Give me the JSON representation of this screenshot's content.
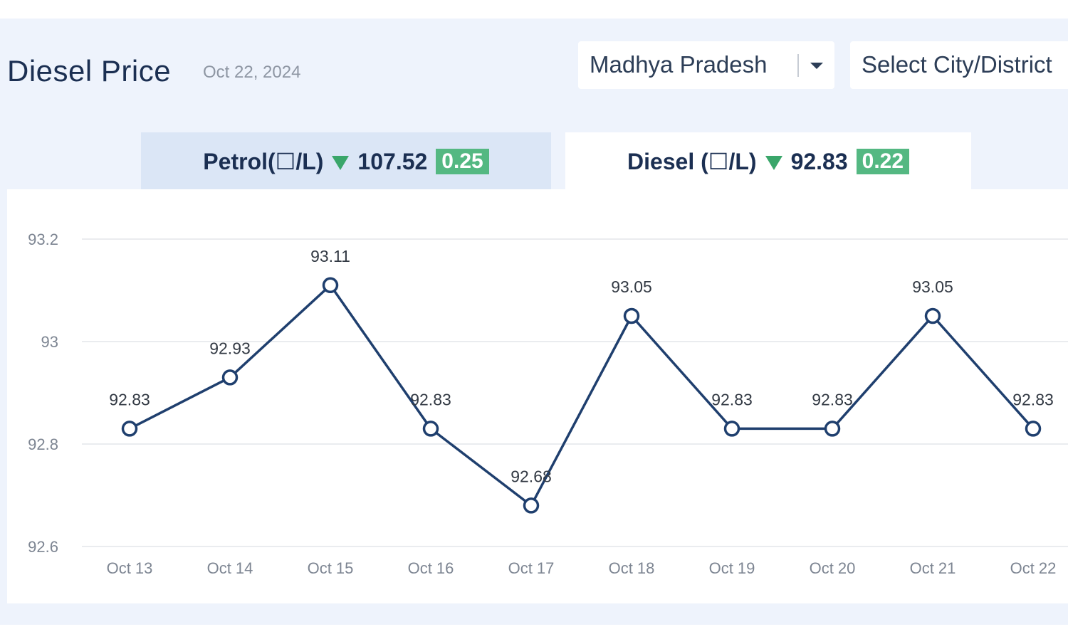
{
  "header": {
    "title": "Diesel Price",
    "date": "Oct 22, 2024"
  },
  "filters": {
    "state": "Madhya Pradesh",
    "city_placeholder": "Select City/District"
  },
  "tabs": [
    {
      "label": "Petrol(☐/L)",
      "price": "107.52",
      "change": "0.25",
      "direction": "down",
      "active": false
    },
    {
      "label": "Diesel (☐/L)",
      "price": "92.83",
      "change": "0.22",
      "direction": "down",
      "active": true
    }
  ],
  "colors": {
    "line": "#1f3f6e",
    "badge": "#54b882",
    "down_arrow": "#3aa66a"
  },
  "chart_data": {
    "type": "line",
    "categories": [
      "Oct 13",
      "Oct 14",
      "Oct 15",
      "Oct 16",
      "Oct 17",
      "Oct 18",
      "Oct 19",
      "Oct 20",
      "Oct 21",
      "Oct 22"
    ],
    "values": [
      92.83,
      92.93,
      93.11,
      92.83,
      92.68,
      93.05,
      92.83,
      92.83,
      93.05,
      92.83
    ],
    "data_labels": [
      "92.83",
      "92.93",
      "93.11",
      "92.83",
      "92.68",
      "93.05",
      "92.83",
      "92.83",
      "93.05",
      "92.83"
    ],
    "yticks": [
      "93.2",
      "93",
      "92.8",
      "92.6"
    ],
    "ylim": [
      92.6,
      93.2
    ],
    "grid": true,
    "legend": "none"
  }
}
